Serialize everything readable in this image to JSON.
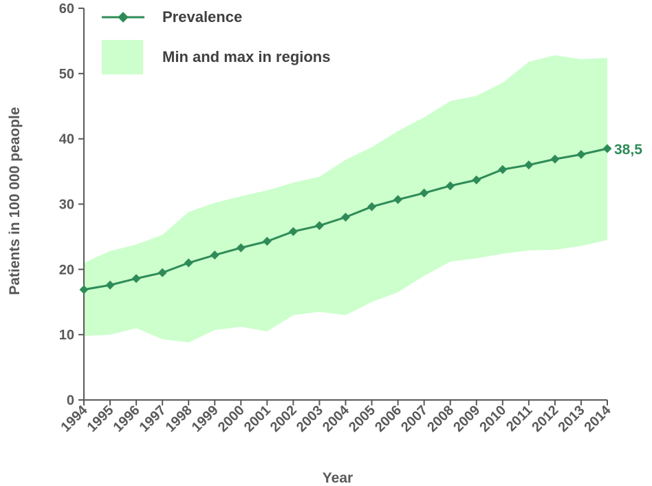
{
  "chart_data": {
    "type": "line",
    "title": "",
    "xlabel": "Year",
    "ylabel": "Patients in 100 000 peaople",
    "ylim": [
      0,
      60
    ],
    "yticks": [
      "0",
      "10",
      "20",
      "30",
      "40",
      "50",
      "60"
    ],
    "grid": false,
    "legend_position": "top-left",
    "categories": [
      "1994",
      "1995",
      "1996",
      "1997",
      "1998",
      "1999",
      "2000",
      "2001",
      "2002",
      "2003",
      "2004",
      "2005",
      "2006",
      "2007",
      "2008",
      "2009",
      "2010",
      "2011",
      "2012",
      "2013",
      "2014"
    ],
    "series": [
      {
        "name": "Prevalence",
        "type": "line",
        "marker": "diamond",
        "color": "#2e8b57",
        "values": [
          16.9,
          17.6,
          18.6,
          19.5,
          21.0,
          22.2,
          23.3,
          24.3,
          25.8,
          26.7,
          28.0,
          29.6,
          30.7,
          31.7,
          32.8,
          33.7,
          35.3,
          36.0,
          36.9,
          37.6,
          38.5
        ]
      },
      {
        "name": "Min and max in regions",
        "type": "area-range",
        "color": "#ccffcc",
        "min": [
          9.8,
          10.0,
          11.0,
          9.3,
          8.8,
          10.7,
          11.2,
          10.5,
          13.0,
          13.5,
          13.0,
          15.0,
          16.5,
          19.0,
          21.2,
          21.7,
          22.4,
          22.9,
          23.0,
          23.6,
          24.5
        ],
        "max": [
          21.0,
          22.8,
          23.8,
          25.3,
          28.8,
          30.2,
          31.2,
          32.1,
          33.3,
          34.2,
          36.8,
          38.7,
          41.2,
          43.3,
          45.8,
          46.6,
          48.6,
          51.8,
          52.8,
          52.2,
          52.4
        ]
      }
    ],
    "end_label": "38,5"
  },
  "colors": {
    "line": "#2e8b57",
    "area": "#ccffcc",
    "axis": "#595959",
    "legend_text": "#404040"
  }
}
